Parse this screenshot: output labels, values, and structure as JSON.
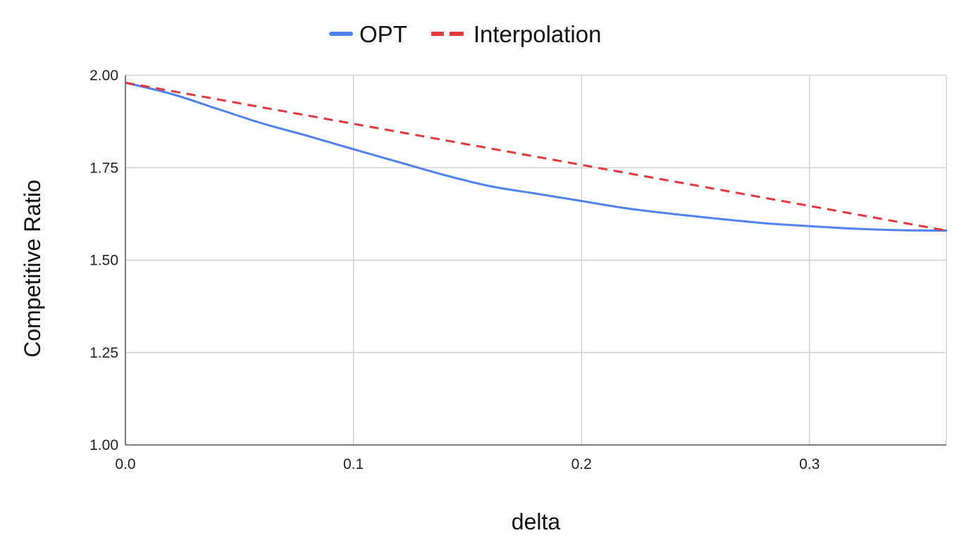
{
  "chart_data": {
    "type": "line",
    "xlabel": "delta",
    "ylabel": "Competitive Ratio",
    "xlim": [
      0,
      0.36
    ],
    "ylim": [
      1.0,
      2.0
    ],
    "x_ticks": [
      {
        "value": 0.0,
        "label": "0.0"
      },
      {
        "value": 0.1,
        "label": "0.1"
      },
      {
        "value": 0.2,
        "label": "0.2"
      },
      {
        "value": 0.3,
        "label": "0.3"
      }
    ],
    "y_ticks": [
      {
        "value": 1.0,
        "label": "1.00"
      },
      {
        "value": 1.25,
        "label": "1.25"
      },
      {
        "value": 1.5,
        "label": "1.50"
      },
      {
        "value": 1.75,
        "label": "1.75"
      },
      {
        "value": 2.0,
        "label": "2.00"
      }
    ],
    "grid": true,
    "legend_position": "top",
    "series": [
      {
        "name": "OPT",
        "color": "#4f81f0",
        "style": "solid",
        "x": [
          0.0,
          0.02,
          0.04,
          0.06,
          0.08,
          0.1,
          0.12,
          0.14,
          0.16,
          0.18,
          0.2,
          0.22,
          0.24,
          0.26,
          0.28,
          0.3,
          0.32,
          0.34,
          0.36
        ],
        "y": [
          1.98,
          1.95,
          1.91,
          1.87,
          1.836,
          1.8,
          1.765,
          1.73,
          1.7,
          1.68,
          1.66,
          1.64,
          1.625,
          1.612,
          1.6,
          1.592,
          1.585,
          1.581,
          1.58
        ]
      },
      {
        "name": "Interpolation",
        "color": "#e0383b",
        "style": "dashed",
        "x": [
          0.0,
          0.36
        ],
        "y": [
          1.98,
          1.58
        ]
      }
    ]
  }
}
